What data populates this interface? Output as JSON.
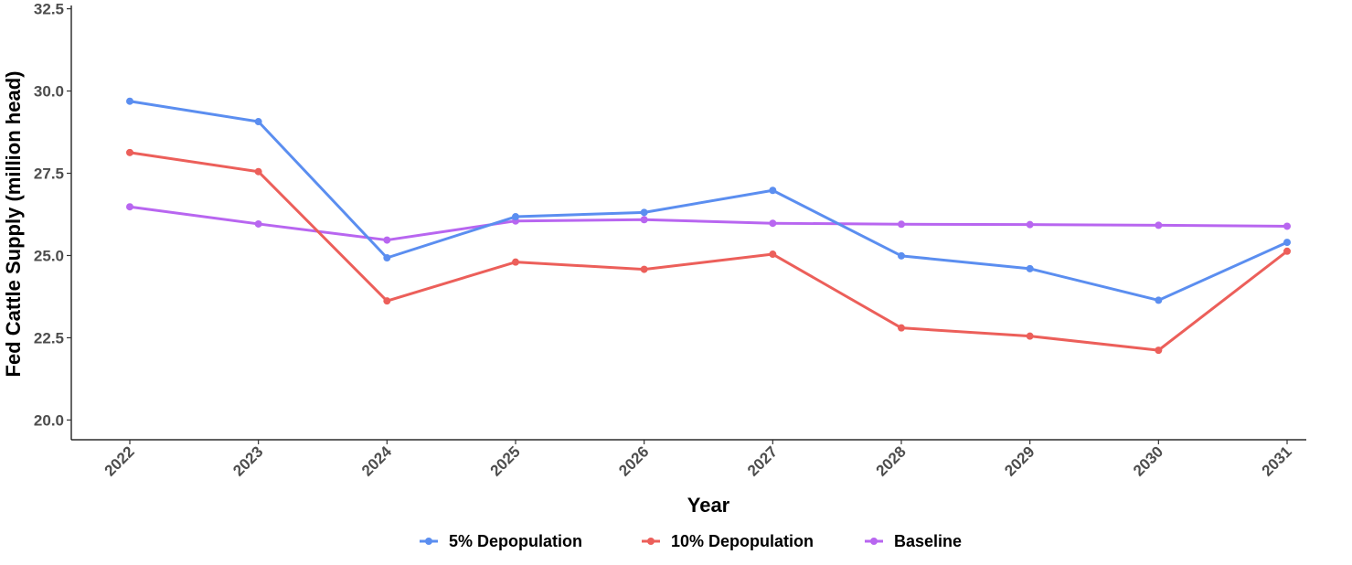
{
  "chart_data": {
    "type": "line",
    "title": "",
    "xlabel": "Year",
    "ylabel": "Fed Cattle Supply (million head)",
    "categories": [
      "2022",
      "2023",
      "2024",
      "2025",
      "2026",
      "2027",
      "2028",
      "2029",
      "2030",
      "2031"
    ],
    "ylim": [
      19.4,
      32.6
    ],
    "yticks": [
      20.0,
      22.5,
      25.0,
      27.5,
      30.0,
      32.5
    ],
    "ytick_labels": [
      "20.0",
      "22.5",
      "25.0",
      "27.5",
      "30.0",
      "32.5"
    ],
    "grid": false,
    "legend_position": "bottom",
    "series": [
      {
        "name": "5% Depopulation",
        "color": "#5b8ef0",
        "values": [
          29.69,
          29.07,
          24.93,
          26.18,
          26.31,
          26.98,
          24.99,
          24.6,
          23.64,
          25.4
        ]
      },
      {
        "name": "10% Depopulation",
        "color": "#ec5f5a",
        "values": [
          28.13,
          27.55,
          23.62,
          24.8,
          24.58,
          25.04,
          22.8,
          22.55,
          22.12,
          25.13
        ]
      },
      {
        "name": "Baseline",
        "color": "#b866f0",
        "values": [
          26.48,
          25.96,
          25.47,
          26.05,
          26.09,
          25.98,
          25.95,
          25.94,
          25.92,
          25.89
        ]
      }
    ]
  }
}
